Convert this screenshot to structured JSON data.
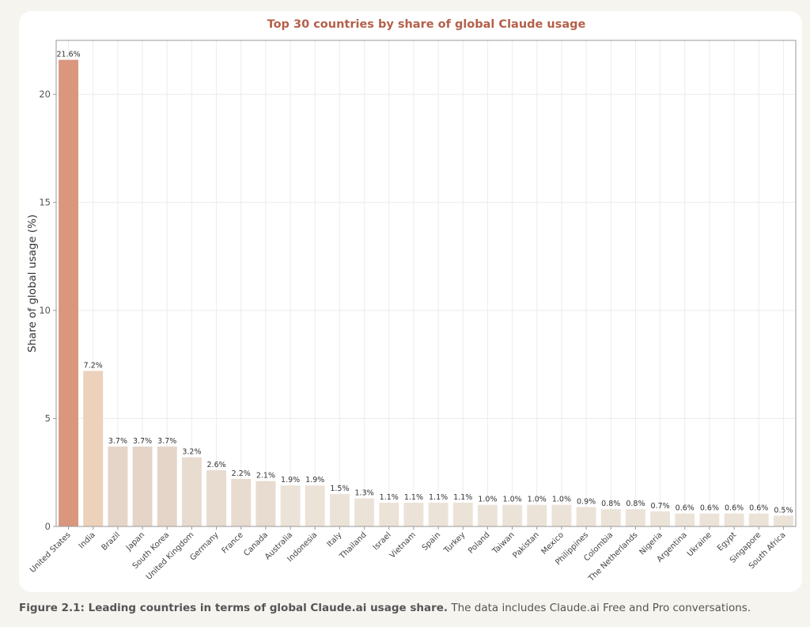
{
  "chart_data": {
    "type": "bar",
    "title": "Top 30 countries by share of global Claude usage",
    "xlabel": "",
    "ylabel": "Share of global usage (%)",
    "ylim": [
      0,
      22.5
    ],
    "yticks": [
      0,
      5,
      10,
      15,
      20
    ],
    "grid": true,
    "categories": [
      "United States",
      "India",
      "Brazil",
      "Japan",
      "South Korea",
      "United Kingdom",
      "Germany",
      "France",
      "Canada",
      "Australia",
      "Indonesia",
      "Italy",
      "Thailand",
      "Israel",
      "Vietnam",
      "Spain",
      "Turkey",
      "Poland",
      "Taiwan",
      "Pakistan",
      "Mexico",
      "Philippines",
      "Colombia",
      "The Netherlands",
      "Nigeria",
      "Argentina",
      "Ukraine",
      "Egypt",
      "Singapore",
      "South Africa"
    ],
    "values": [
      21.6,
      7.2,
      3.7,
      3.7,
      3.7,
      3.2,
      2.6,
      2.2,
      2.1,
      1.9,
      1.9,
      1.5,
      1.3,
      1.1,
      1.1,
      1.1,
      1.1,
      1.0,
      1.0,
      1.0,
      1.0,
      0.9,
      0.8,
      0.8,
      0.7,
      0.6,
      0.6,
      0.6,
      0.6,
      0.5
    ],
    "labels": [
      "21.6%",
      "7.2%",
      "3.7%",
      "3.7%",
      "3.7%",
      "3.2%",
      "2.6%",
      "2.2%",
      "2.1%",
      "1.9%",
      "1.9%",
      "1.5%",
      "1.3%",
      "1.1%",
      "1.1%",
      "1.1%",
      "1.1%",
      "1.0%",
      "1.0%",
      "1.0%",
      "1.0%",
      "0.9%",
      "0.8%",
      "0.8%",
      "0.7%",
      "0.6%",
      "0.6%",
      "0.6%",
      "0.6%",
      "0.5%"
    ],
    "colors": {
      "title": "#b4604a",
      "first_bar": "#da977e",
      "second_bar": "#ecd1bb",
      "bar_low": "#ece3d8",
      "bar_mid": "#e5d5c8",
      "frame": "#999999",
      "grid": "#ececec",
      "text": "#333333"
    }
  },
  "caption": {
    "bold": "Figure 2.1: Leading countries in terms of global Claude.ai usage share.",
    "text": " The data includes Claude.ai Free and Pro conversations."
  }
}
